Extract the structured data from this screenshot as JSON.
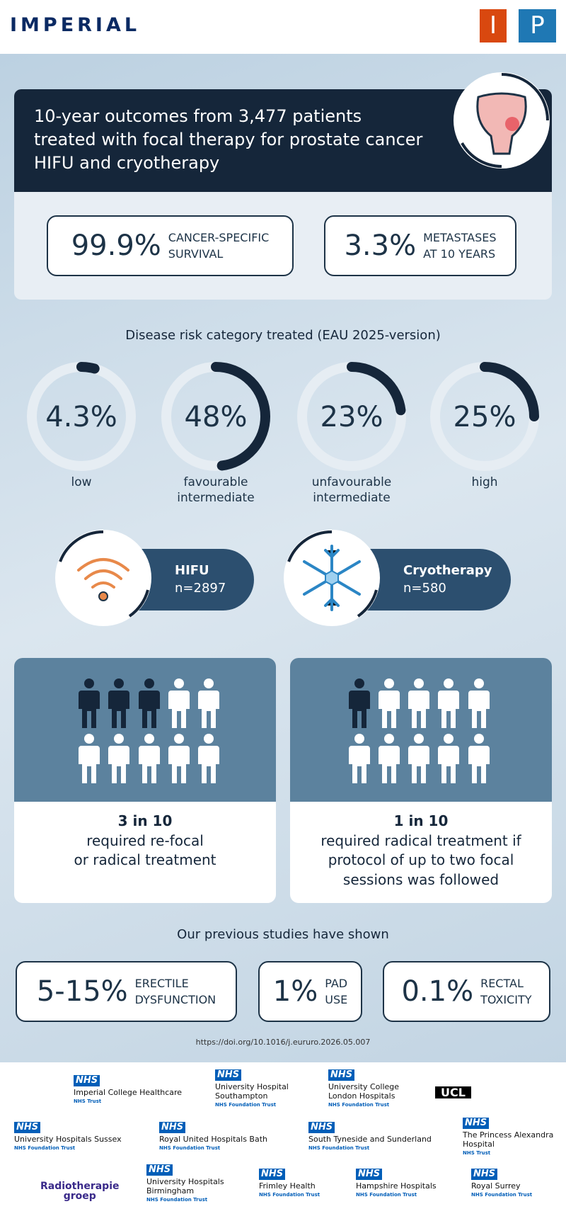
{
  "header": {
    "logo": "IMPERIAL",
    "ip": [
      "I",
      "P"
    ]
  },
  "hero": {
    "title_lines": [
      "10-year outcomes from 3,477 patients",
      "treated with focal therapy for prostate cancer",
      "HIFU and cryotherapy"
    ],
    "stats": [
      {
        "value": "99.9%",
        "label": [
          "CANCER-SPECIFIC",
          "SURVIVAL"
        ]
      },
      {
        "value": "3.3%",
        "label": [
          "METASTASES",
          "AT 10 YEARS"
        ]
      }
    ]
  },
  "risk": {
    "title": "Disease risk category treated (EAU 2025-version)",
    "items": [
      {
        "value": 4.3,
        "value_label": "4.3%",
        "label": [
          "low"
        ]
      },
      {
        "value": 48,
        "value_label": "48%",
        "label": [
          "favourable",
          "intermediate"
        ]
      },
      {
        "value": 23,
        "value_label": "23%",
        "label": [
          "unfavourable",
          "intermediate"
        ]
      },
      {
        "value": 25,
        "value_label": "25%",
        "label": [
          "high"
        ]
      }
    ]
  },
  "treatments": [
    {
      "name": "HIFU",
      "n": "n=2897"
    },
    {
      "name": "Cryotherapy",
      "n": "n=580"
    }
  ],
  "outcomes": [
    {
      "headline": "3 in 10",
      "lines": [
        "required re-focal",
        "or radical treatment"
      ]
    },
    {
      "headline": "1 in 10",
      "lines": [
        "required radical treatment if",
        "protocol of up to two focal",
        "sessions was followed"
      ]
    }
  ],
  "previous": {
    "title": "Our previous studies have shown",
    "items": [
      {
        "value": "5-15%",
        "label": [
          "ERECTILE",
          "DYSFUNCTION"
        ]
      },
      {
        "value": "1%",
        "label": [
          "PAD",
          "USE"
        ]
      },
      {
        "value": "0.1%",
        "label": [
          "RECTAL",
          "TOXICITY"
        ]
      }
    ]
  },
  "doi": "https://doi.org/10.1016/j.eururo.2026.05.007",
  "partners": [
    {
      "badge": "NHS",
      "name": [
        "Imperial College Healthcare"
      ],
      "sub": "NHS Trust"
    },
    {
      "badge": "NHS",
      "name": [
        "University Hospital",
        "Southampton"
      ],
      "sub": "NHS Foundation Trust"
    },
    {
      "badge": "NHS",
      "name": [
        "University College",
        "London Hospitals"
      ],
      "sub": "NHS Foundation Trust"
    },
    {
      "name": [
        "UCL"
      ]
    },
    {
      "badge": "NHS",
      "name": [
        "University Hospitals Sussex"
      ],
      "sub": "NHS Foundation Trust"
    },
    {
      "badge": "NHS",
      "name": [
        "Royal United Hospitals Bath"
      ],
      "sub": "NHS Foundation Trust"
    },
    {
      "badge": "NHS",
      "name": [
        "South Tyneside and Sunderland"
      ],
      "sub": "NHS Foundation Trust"
    },
    {
      "badge": "NHS",
      "name": [
        "The Princess Alexandra",
        "Hospital"
      ],
      "sub": "NHS Trust"
    },
    {
      "name": [
        "Radiotherapie",
        "groep"
      ]
    },
    {
      "badge": "NHS",
      "name": [
        "University Hospitals",
        "Birmingham"
      ],
      "sub": "NHS Foundation Trust"
    },
    {
      "badge": "NHS",
      "name": [
        "Frimley Health"
      ],
      "sub": "NHS Foundation Trust"
    },
    {
      "badge": "NHS",
      "name": [
        "Hampshire Hospitals"
      ],
      "sub": "NHS Foundation Trust"
    },
    {
      "badge": "NHS",
      "name": [
        "Royal Surrey"
      ],
      "sub": "NHS Foundation Trust"
    }
  ]
}
